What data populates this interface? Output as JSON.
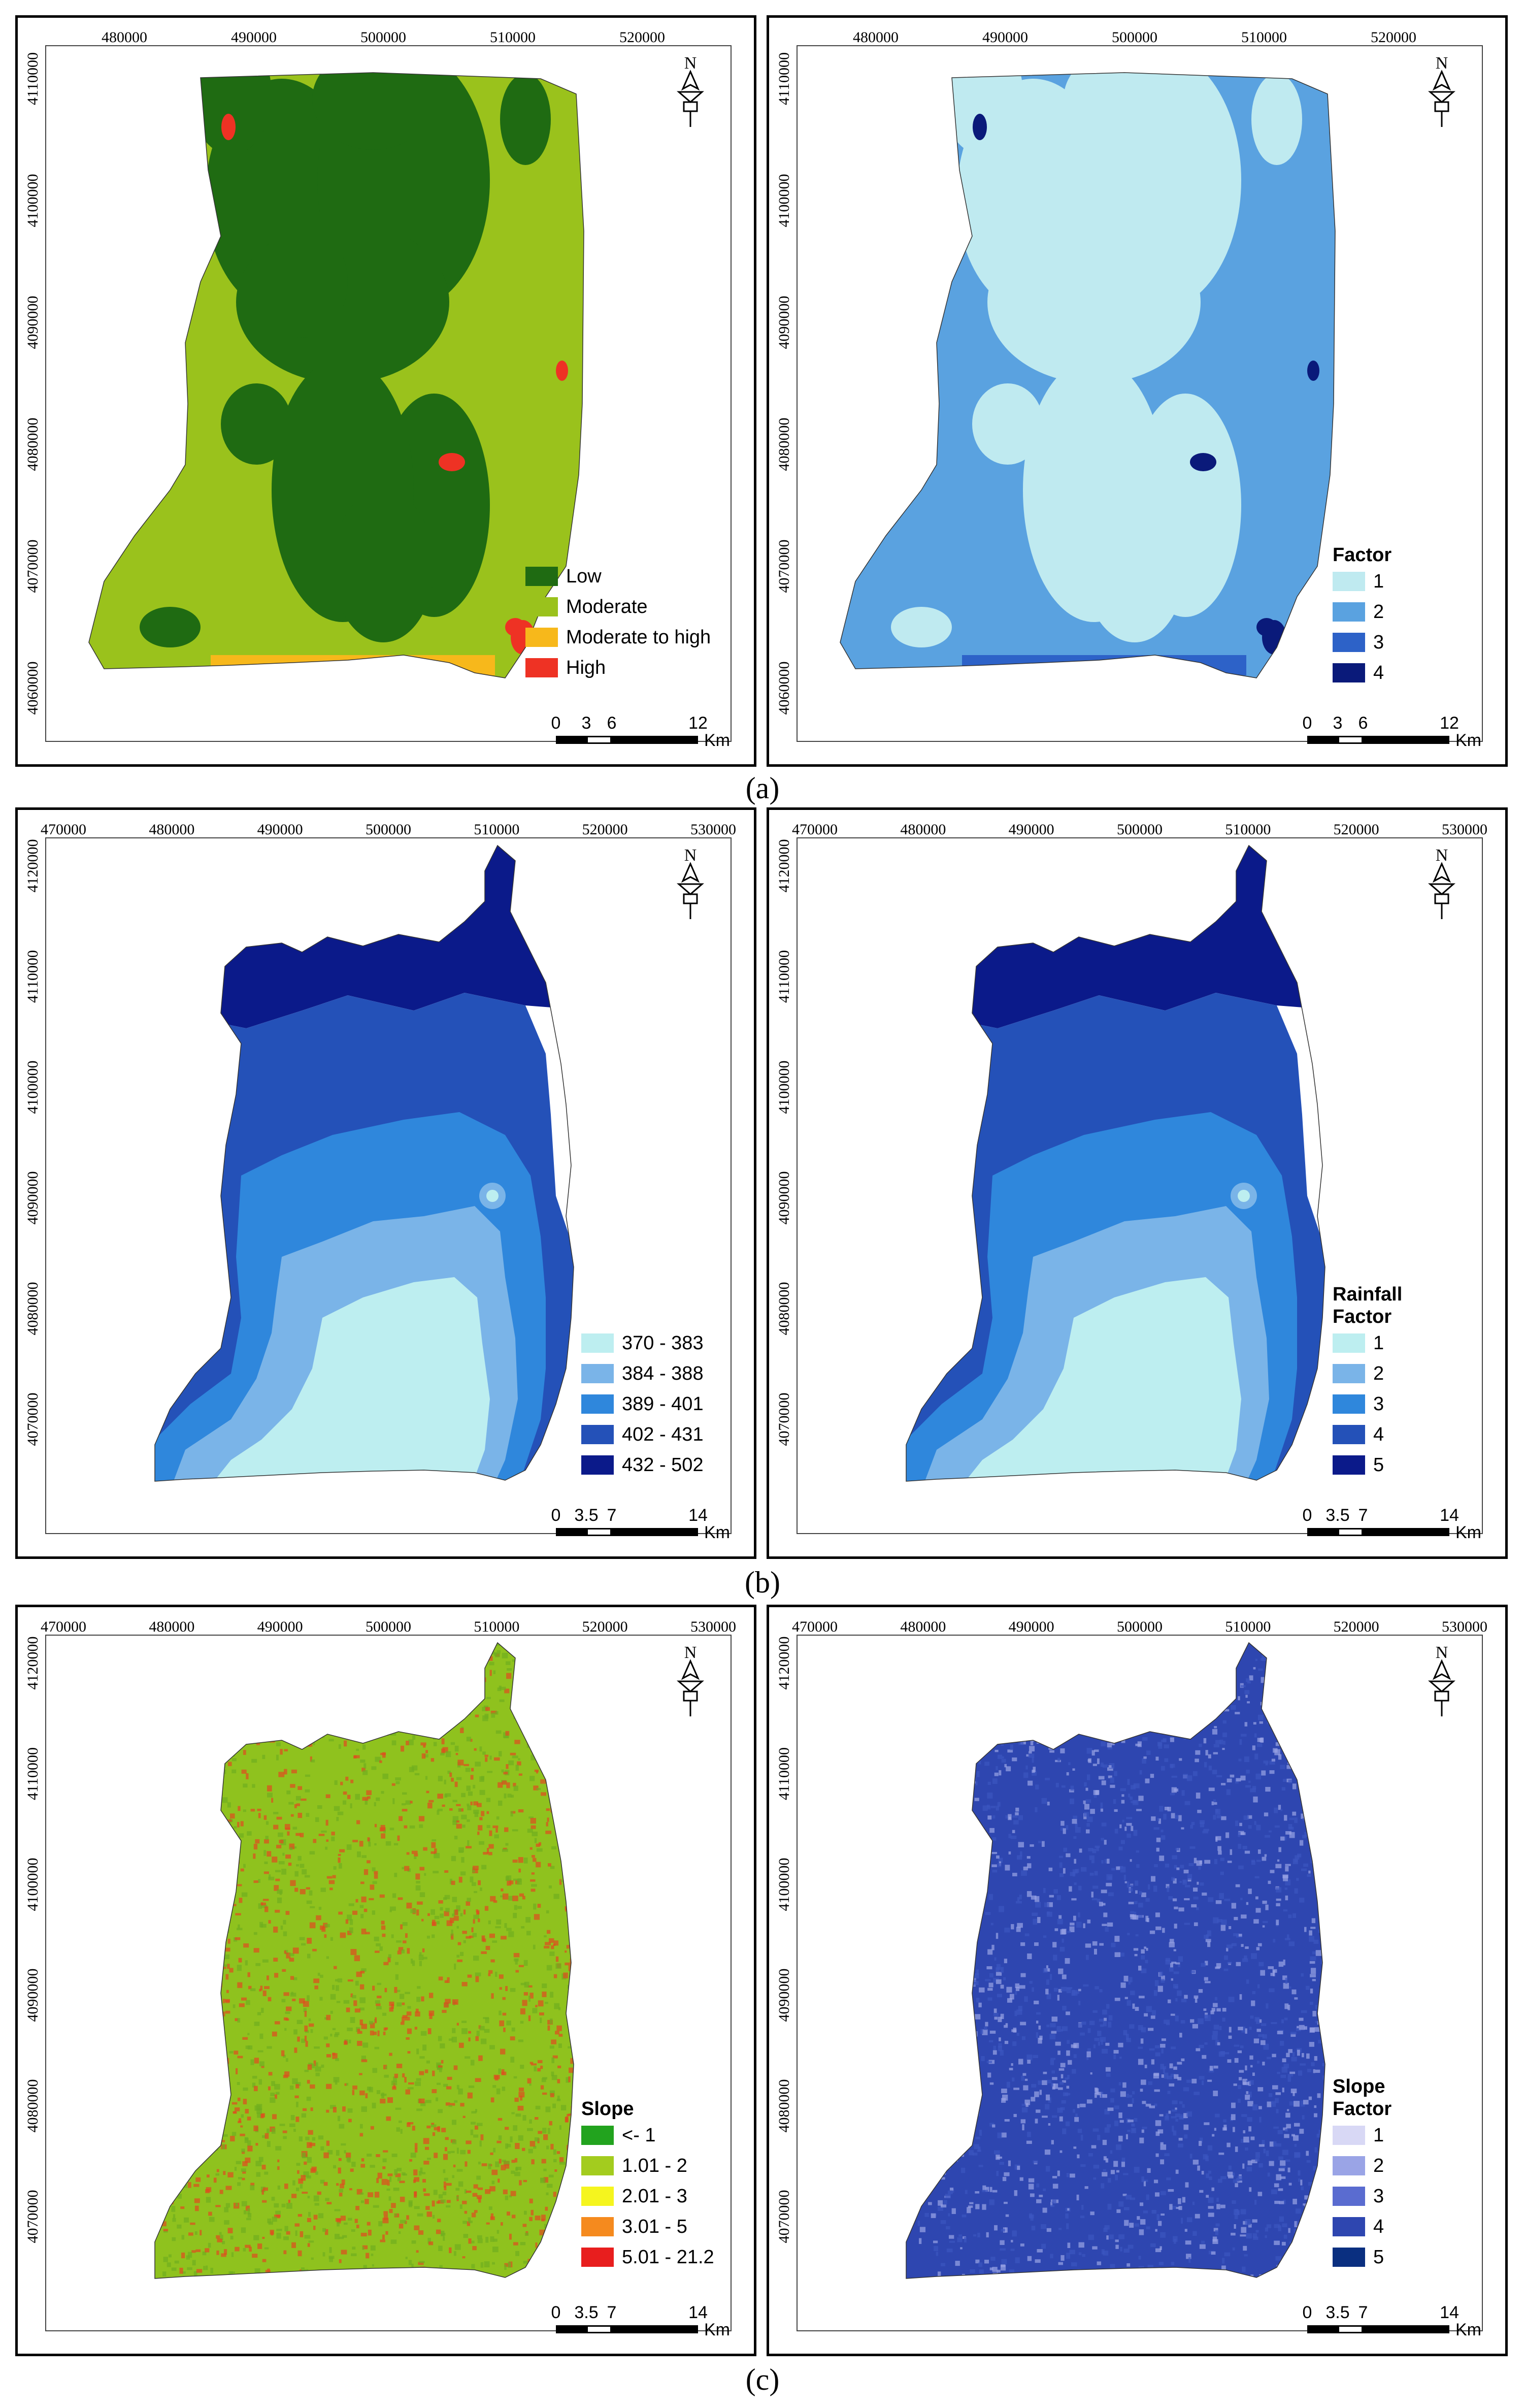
{
  "captions": [
    "(a)",
    "(b)",
    "(c)"
  ],
  "panels": [
    {
      "id": "a-left",
      "x_ticks": [
        "480000",
        "490000",
        "500000",
        "510000",
        "520000"
      ],
      "y_ticks": [
        "4110000",
        "4100000",
        "4090000",
        "4080000",
        "4070000",
        "4060000"
      ],
      "legend_title": [],
      "legend": [
        {
          "label": "Low",
          "color": "#1f6b12"
        },
        {
          "label": "Moderate",
          "color": "#9ac21c"
        },
        {
          "label": "Moderate to high",
          "color": "#f7b81b"
        },
        {
          "label": "High",
          "color": "#ee3224"
        }
      ],
      "scale": {
        "labels": [
          "0",
          "3",
          "6",
          "12"
        ],
        "unit": "Km"
      },
      "fill": "#9ac21c",
      "patch": "#1f6b12",
      "accent": "#ee3224",
      "accent2": "#f7b81b",
      "shape": "a"
    },
    {
      "id": "a-right",
      "x_ticks": [
        "480000",
        "490000",
        "500000",
        "510000",
        "520000"
      ],
      "y_ticks": [
        "4110000",
        "4100000",
        "4090000",
        "4080000",
        "4070000",
        "4060000"
      ],
      "legend_title": [
        "Factor"
      ],
      "legend": [
        {
          "label": "1",
          "color": "#bfeaf0"
        },
        {
          "label": "2",
          "color": "#5aa2e0"
        },
        {
          "label": "3",
          "color": "#2d62c8"
        },
        {
          "label": "4",
          "color": "#0a1a7a"
        }
      ],
      "scale": {
        "labels": [
          "0",
          "3",
          "6",
          "12"
        ],
        "unit": "Km"
      },
      "fill": "#5aa2e0",
      "patch": "#bfeaf0",
      "accent": "#0a1a7a",
      "accent2": "#2d62c8",
      "shape": "a"
    },
    {
      "id": "b-left",
      "x_ticks": [
        "470000",
        "480000",
        "490000",
        "500000",
        "510000",
        "520000",
        "530000"
      ],
      "y_ticks": [
        "4120000",
        "4110000",
        "4100000",
        "4090000",
        "4080000",
        "4070000"
      ],
      "legend_title": [],
      "legend": [
        {
          "label": "370 - 383",
          "color": "#bdeef0"
        },
        {
          "label": "384 - 388",
          "color": "#7ab4e8"
        },
        {
          "label": "389 - 401",
          "color": "#2f87dc"
        },
        {
          "label": "402 - 431",
          "color": "#2451b8"
        },
        {
          "label": "432 - 502",
          "color": "#0b1a8a"
        }
      ],
      "scale": {
        "labels": [
          "0",
          "3.5",
          "7",
          "14"
        ],
        "unit": "Km"
      },
      "shape": "b"
    },
    {
      "id": "b-right",
      "x_ticks": [
        "470000",
        "480000",
        "490000",
        "500000",
        "510000",
        "520000",
        "530000"
      ],
      "y_ticks": [
        "4120000",
        "4110000",
        "4100000",
        "4090000",
        "4080000",
        "4070000"
      ],
      "legend_title": [
        "Rainfall",
        "Factor"
      ],
      "legend": [
        {
          "label": "1",
          "color": "#bdeef0"
        },
        {
          "label": "2",
          "color": "#7ab4e8"
        },
        {
          "label": "3",
          "color": "#2f87dc"
        },
        {
          "label": "4",
          "color": "#2451b8"
        },
        {
          "label": "5",
          "color": "#0b1a8a"
        }
      ],
      "scale": {
        "labels": [
          "0",
          "3.5",
          "7",
          "14"
        ],
        "unit": "Km"
      },
      "shape": "b"
    },
    {
      "id": "c-left",
      "x_ticks": [
        "470000",
        "480000",
        "490000",
        "500000",
        "510000",
        "520000",
        "530000"
      ],
      "y_ticks": [
        "4120000",
        "4110000",
        "4100000",
        "4090000",
        "4080000",
        "4070000"
      ],
      "legend_title": [
        "Slope"
      ],
      "legend": [
        {
          "label": "<- 1",
          "color": "#22a31e"
        },
        {
          "label": "1.01 - 2",
          "color": "#a3cc1e"
        },
        {
          "label": "2.01 - 3",
          "color": "#f5f51e"
        },
        {
          "label": "3.01 - 5",
          "color": "#f58a1e"
        },
        {
          "label": "5.01 - 21.2",
          "color": "#e81e1e"
        }
      ],
      "scale": {
        "labels": [
          "0",
          "3.5",
          "7",
          "14"
        ],
        "unit": "Km"
      },
      "fill": "#8fc21e",
      "patch": "#6fae1e",
      "accent": "#e04a1e",
      "shape": "c"
    },
    {
      "id": "c-right",
      "x_ticks": [
        "470000",
        "480000",
        "490000",
        "500000",
        "510000",
        "520000",
        "530000"
      ],
      "y_ticks": [
        "4120000",
        "4110000",
        "4100000",
        "4090000",
        "4080000",
        "4070000"
      ],
      "legend_title": [
        "Slope",
        "Factor"
      ],
      "legend": [
        {
          "label": "1",
          "color": "#d8d8f5"
        },
        {
          "label": "2",
          "color": "#9aa4e6"
        },
        {
          "label": "3",
          "color": "#5a6cd0"
        },
        {
          "label": "4",
          "color": "#2e46b0"
        },
        {
          "label": "5",
          "color": "#0a2f80"
        }
      ],
      "scale": {
        "labels": [
          "0",
          "3.5",
          "7",
          "14"
        ],
        "unit": "Km"
      },
      "fill": "#2e46b0",
      "patch": "#3c56c0",
      "accent": "#9aa4e6",
      "shape": "c"
    }
  ]
}
